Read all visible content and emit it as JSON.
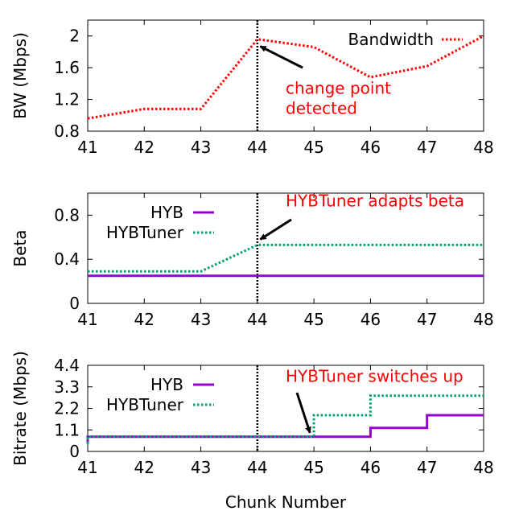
{
  "figure": {
    "shared_xlabel": "Chunk Number"
  },
  "chart_data": [
    {
      "type": "line",
      "title": "",
      "ylabel": "BW (Mbps)",
      "xlabel": "",
      "xlim": [
        41,
        48
      ],
      "ylim": [
        0.8,
        2.2
      ],
      "xticks": [
        "41",
        "42",
        "43",
        "44",
        "45",
        "46",
        "47",
        "48"
      ],
      "yticks": [
        "0.8",
        "1.2",
        "1.6",
        "2"
      ],
      "grid": false,
      "legend_position": "top-right",
      "series": [
        {
          "name": "Bandwidth",
          "style": "dotted",
          "color": "#ff0000",
          "x": [
            41,
            42,
            43,
            44,
            45,
            46,
            47,
            48
          ],
          "y": [
            0.96,
            1.08,
            1.08,
            1.96,
            1.86,
            1.48,
            1.62,
            2.0
          ]
        }
      ],
      "vline": {
        "x": 44,
        "style": "dotted",
        "color": "#000000"
      },
      "annotations": [
        {
          "lines": [
            "change point",
            "detected"
          ],
          "color": "#ff0000",
          "text_x": 44.5,
          "text_y": 1.27,
          "arrow_from": [
            44.8,
            1.6
          ],
          "arrow_to": [
            44.05,
            1.87
          ]
        }
      ]
    },
    {
      "type": "line",
      "title": "",
      "ylabel": "Beta",
      "xlabel": "",
      "xlim": [
        41,
        48
      ],
      "ylim": [
        0,
        1
      ],
      "xticks": [
        "41",
        "42",
        "43",
        "44",
        "45",
        "46",
        "47",
        "48"
      ],
      "yticks": [
        "0",
        "0.4",
        "0.8"
      ],
      "grid": false,
      "legend_position": "top-left",
      "series": [
        {
          "name": "HYB",
          "style": "solid",
          "color": "#9400d3",
          "x": [
            41,
            48
          ],
          "y": [
            0.25,
            0.25
          ]
        },
        {
          "name": "HYBTuner",
          "style": "dotted",
          "color": "#009e73",
          "x": [
            41,
            43,
            44,
            48
          ],
          "y": [
            0.29,
            0.29,
            0.53,
            0.53
          ]
        }
      ],
      "vline": {
        "x": 44,
        "style": "dotted",
        "color": "#000000"
      },
      "annotations": [
        {
          "lines": [
            "HYBTuner adapts beta"
          ],
          "color": "#ff0000",
          "text_x": 44.5,
          "text_y": 0.88,
          "arrow_from": [
            44.6,
            0.76
          ],
          "arrow_to": [
            44.05,
            0.58
          ]
        }
      ]
    },
    {
      "type": "line",
      "title": "",
      "ylabel": "Bitrate (Mbps)",
      "xlabel": "Chunk Number",
      "xlim": [
        41,
        48
      ],
      "ylim": [
        0,
        4.4
      ],
      "xticks": [
        "41",
        "42",
        "43",
        "44",
        "45",
        "46",
        "47",
        "48"
      ],
      "yticks": [
        "0",
        "1.1",
        "2.2",
        "3.3",
        "4.4"
      ],
      "grid": false,
      "legend_position": "top-left",
      "series": [
        {
          "name": "HYB",
          "style": "solid",
          "color": "#9400d3",
          "x": [
            41,
            41,
            46,
            46,
            47,
            47,
            48
          ],
          "y": [
            0.4,
            0.75,
            0.75,
            1.2,
            1.2,
            1.85,
            1.85
          ]
        },
        {
          "name": "HYBTuner",
          "style": "dotted",
          "color": "#009e73",
          "x": [
            41,
            41,
            45,
            45,
            46,
            46,
            48
          ],
          "y": [
            0.4,
            0.75,
            0.75,
            1.85,
            1.85,
            2.85,
            2.85
          ]
        }
      ],
      "vline": {
        "x": 44,
        "style": "dotted",
        "color": "#000000"
      },
      "annotations": [
        {
          "lines": [
            "HYBTuner switches up"
          ],
          "color": "#ff0000",
          "text_x": 44.5,
          "text_y": 3.55,
          "arrow_from": [
            44.7,
            3.0
          ],
          "arrow_to": [
            44.93,
            0.95
          ]
        }
      ]
    }
  ]
}
